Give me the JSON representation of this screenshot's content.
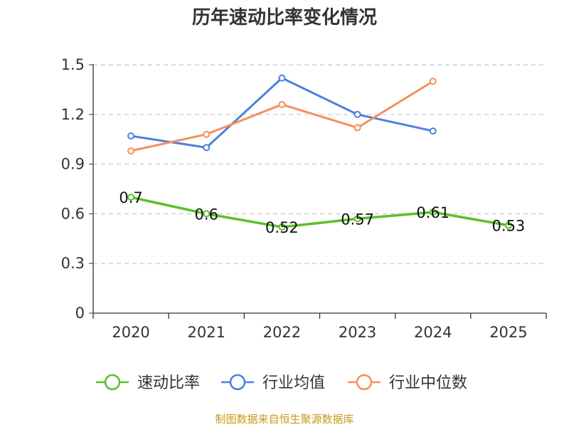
{
  "chart_data": {
    "type": "line",
    "title": "历年速动比率变化情况",
    "categories": [
      "2020",
      "2021",
      "2022",
      "2023",
      "2024",
      "2025"
    ],
    "ylim": [
      0,
      1.5
    ],
    "yticks": [
      "0",
      "0.3",
      "0.6",
      "0.9",
      "1.2",
      "1.5"
    ],
    "grid": true,
    "legend_position": "bottom",
    "series": [
      {
        "name": "速动比率",
        "color": "#5cbf2a",
        "values": [
          0.7,
          0.6,
          0.52,
          0.57,
          0.61,
          0.53
        ],
        "labels": [
          "0.7",
          "0.6",
          "0.52",
          "0.57",
          "0.61",
          "0.53"
        ]
      },
      {
        "name": "行业均值",
        "color": "#4f7fdc",
        "values": [
          1.07,
          1.0,
          1.42,
          1.2,
          1.1,
          null
        ]
      },
      {
        "name": "行业中位数",
        "color": "#f5905a",
        "values": [
          0.98,
          1.08,
          1.26,
          1.12,
          1.4,
          null
        ]
      }
    ]
  },
  "source": "制图数据来自恒生聚源数据库"
}
